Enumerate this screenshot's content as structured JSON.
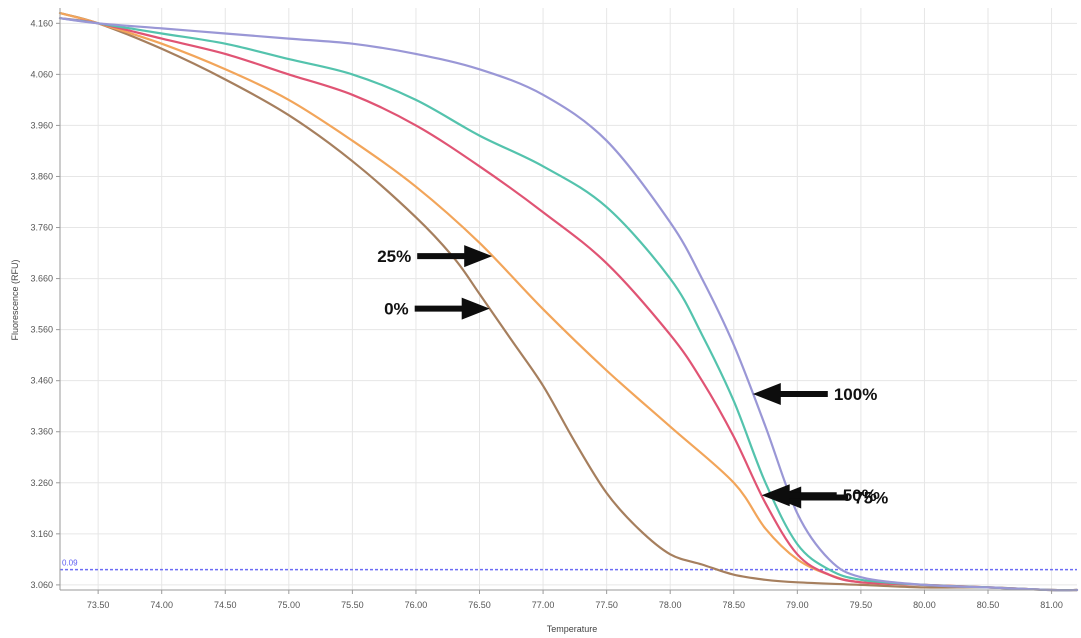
{
  "chart_data": {
    "type": "line",
    "title": "",
    "xlabel": "Temperature",
    "ylabel": "Fluorescence (RFU)",
    "xlim": [
      73.2,
      81.2
    ],
    "ylim": [
      3.05,
      4.19
    ],
    "x_ticks": [
      73.5,
      74.0,
      74.5,
      75.0,
      75.5,
      76.0,
      76.5,
      77.0,
      77.5,
      78.0,
      78.5,
      79.0,
      79.5,
      80.0,
      80.5,
      81.0
    ],
    "x_tick_labels": [
      "73.50",
      "74.00",
      "74.50",
      "75.00",
      "75.50",
      "76.00",
      "76.50",
      "77.00",
      "77.50",
      "78.00",
      "78.50",
      "79.00",
      "79.50",
      "80.00",
      "80.50",
      "81.00"
    ],
    "y_ticks": [
      3.06,
      3.16,
      3.26,
      3.36,
      3.46,
      3.56,
      3.66,
      3.76,
      3.86,
      3.96,
      4.06,
      4.16
    ],
    "y_tick_labels": [
      "3.060",
      "3.160",
      "3.260",
      "3.360",
      "3.460",
      "3.560",
      "3.660",
      "3.760",
      "3.860",
      "3.960",
      "4.060",
      "4.160"
    ],
    "grid": true,
    "legend": "none",
    "threshold": {
      "y": 3.09,
      "label": "0.09",
      "color": "#6c6cf5"
    },
    "series": [
      {
        "name": "0%",
        "color": "#a67f5e",
        "x": [
          73.2,
          73.5,
          74.0,
          74.5,
          75.0,
          75.5,
          76.0,
          76.3,
          76.5,
          76.75,
          77.0,
          77.25,
          77.5,
          77.75,
          78.0,
          78.25,
          78.5,
          78.75,
          79.0,
          79.5,
          80.0,
          80.5,
          81.0,
          81.2
        ],
        "y": [
          4.18,
          4.16,
          4.11,
          4.05,
          3.98,
          3.89,
          3.78,
          3.7,
          3.63,
          3.54,
          3.45,
          3.34,
          3.24,
          3.17,
          3.12,
          3.1,
          3.08,
          3.07,
          3.065,
          3.06,
          3.055,
          3.055,
          3.05,
          3.05
        ]
      },
      {
        "name": "25%",
        "color": "#f2a55a",
        "x": [
          73.2,
          73.5,
          74.0,
          74.5,
          75.0,
          75.5,
          76.0,
          76.5,
          77.0,
          77.5,
          78.0,
          78.5,
          78.75,
          79.0,
          79.25,
          79.5,
          80.0,
          80.5,
          81.0,
          81.2
        ],
        "y": [
          4.18,
          4.16,
          4.12,
          4.07,
          4.01,
          3.93,
          3.84,
          3.73,
          3.6,
          3.48,
          3.37,
          3.26,
          3.17,
          3.11,
          3.08,
          3.065,
          3.06,
          3.055,
          3.05,
          3.05
        ]
      },
      {
        "name": "50%",
        "color": "#e05474",
        "x": [
          73.2,
          73.5,
          74.0,
          74.5,
          75.0,
          75.5,
          76.0,
          76.5,
          77.0,
          77.5,
          78.0,
          78.25,
          78.5,
          78.75,
          79.0,
          79.25,
          79.5,
          80.0,
          80.5,
          81.0,
          81.2
        ],
        "y": [
          4.17,
          4.16,
          4.13,
          4.1,
          4.06,
          4.02,
          3.96,
          3.88,
          3.79,
          3.69,
          3.55,
          3.46,
          3.35,
          3.22,
          3.12,
          3.08,
          3.065,
          3.06,
          3.055,
          3.05,
          3.05
        ]
      },
      {
        "name": "75%",
        "color": "#54c3ad",
        "x": [
          73.2,
          73.5,
          74.0,
          74.5,
          75.0,
          75.5,
          76.0,
          76.5,
          77.0,
          77.5,
          78.0,
          78.25,
          78.5,
          78.75,
          79.0,
          79.25,
          79.5,
          80.0,
          80.5,
          81.0,
          81.2
        ],
        "y": [
          4.17,
          4.16,
          4.14,
          4.12,
          4.09,
          4.06,
          4.01,
          3.94,
          3.88,
          3.8,
          3.66,
          3.55,
          3.42,
          3.26,
          3.14,
          3.09,
          3.07,
          3.06,
          3.055,
          3.05,
          3.05
        ]
      },
      {
        "name": "100%",
        "color": "#9a97d6",
        "x": [
          73.2,
          73.5,
          74.0,
          74.5,
          75.0,
          75.5,
          76.0,
          76.5,
          77.0,
          77.5,
          78.0,
          78.25,
          78.5,
          78.75,
          79.0,
          79.25,
          79.5,
          80.0,
          80.5,
          81.0,
          81.2
        ],
        "y": [
          4.17,
          4.16,
          4.15,
          4.14,
          4.13,
          4.12,
          4.1,
          4.07,
          4.02,
          3.93,
          3.77,
          3.66,
          3.53,
          3.37,
          3.2,
          3.11,
          3.075,
          3.06,
          3.055,
          3.05,
          3.05
        ]
      }
    ],
    "annotations": [
      {
        "text": "25%",
        "series": "25%",
        "at_x": 76.6,
        "side": "left"
      },
      {
        "text": "0%",
        "series": "0%",
        "at_x": 76.58,
        "side": "left"
      },
      {
        "text": "100%",
        "series": "100%",
        "at_x": 78.65,
        "side": "right"
      },
      {
        "text": "75%",
        "series": "75%",
        "at_x": 78.81,
        "side": "right"
      },
      {
        "text": "50%",
        "series": "50%",
        "at_x": 78.72,
        "side": "right"
      }
    ]
  }
}
